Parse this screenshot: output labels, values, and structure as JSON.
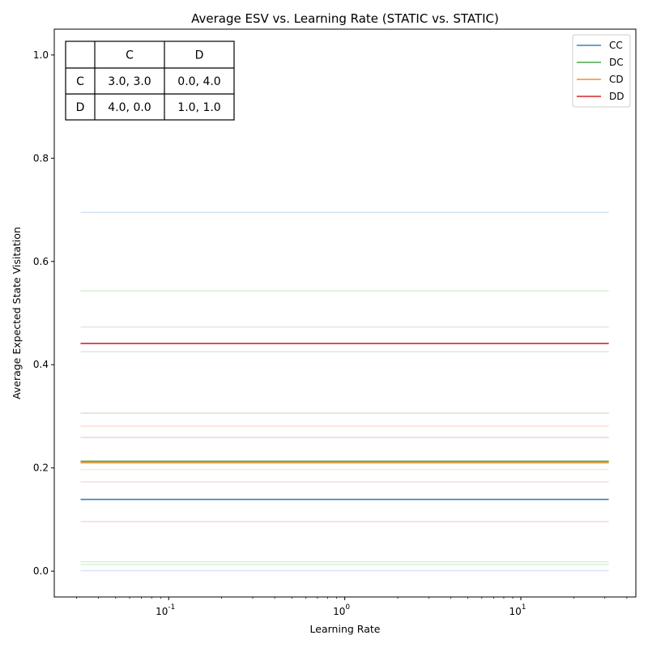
{
  "chart_data": {
    "type": "line",
    "title": "Average ESV vs. Learning Rate (STATIC vs. STATIC)",
    "xlabel": "Learning Rate",
    "ylabel": "Average Expected State Visitation",
    "xscale": "log",
    "xlim": [
      0.0224,
      45
    ],
    "ylim": [
      -0.05,
      1.05
    ],
    "x_tick_labels": [
      "10^-1",
      "10^0",
      "10^1"
    ],
    "x_tick_values": [
      0.1,
      1,
      10
    ],
    "y_tick_values": [
      0.0,
      0.2,
      0.4,
      0.6,
      0.8,
      1.0
    ],
    "y_tick_labels": [
      "0.0",
      "0.2",
      "0.4",
      "0.6",
      "0.8",
      "1.0"
    ],
    "x": [
      0.0316,
      31.6
    ],
    "legend_position": "top-right",
    "grid": false,
    "series": [
      {
        "name": "CC",
        "color": "#3a7ebf",
        "values": [
          0.139,
          0.139
        ]
      },
      {
        "name": "DC",
        "color": "#4aa84a",
        "values": [
          0.213,
          0.213
        ]
      },
      {
        "name": "CD",
        "color": "#f28e2b",
        "values": [
          0.21,
          0.21
        ]
      },
      {
        "name": "DD",
        "color": "#d62728",
        "values": [
          0.441,
          0.441
        ]
      }
    ],
    "faint_lines": [
      {
        "color": "#9ec3e6",
        "value": 0.695
      },
      {
        "color": "#a6dba0",
        "value": 0.543
      },
      {
        "color": "#c7c7c7",
        "value": 0.473
      },
      {
        "color": "#a6dba0",
        "value": 0.425
      },
      {
        "color": "#b8b894",
        "value": 0.306
      },
      {
        "color": "#f4b6a0",
        "value": 0.281
      },
      {
        "color": "#dba0a0",
        "value": 0.259
      },
      {
        "color": "#e8d8a0",
        "value": 0.197
      },
      {
        "color": "#e6b0c8",
        "value": 0.173
      },
      {
        "color": "#f4a0b0",
        "value": 0.096
      },
      {
        "color": "#a6dba0",
        "value": 0.018
      },
      {
        "color": "#a6dba0",
        "value": 0.013
      },
      {
        "color": "#9ec3e6",
        "value": 0.001
      }
    ],
    "payoff_table": {
      "header": [
        "",
        "C",
        "D"
      ],
      "rows": [
        [
          "C",
          "3.0, 3.0",
          "0.0, 4.0"
        ],
        [
          "D",
          "4.0, 0.0",
          "1.0, 1.0"
        ]
      ]
    }
  }
}
